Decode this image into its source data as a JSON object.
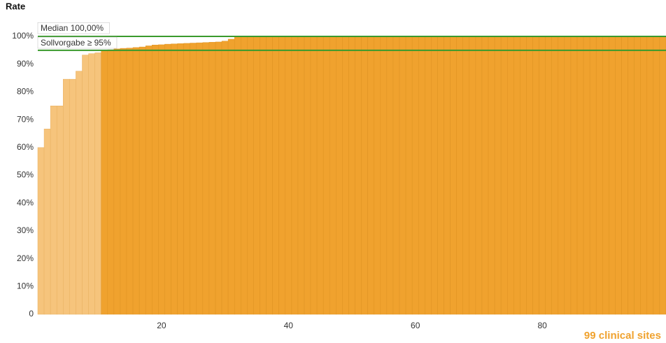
{
  "chart_data": {
    "type": "bar",
    "title": "Rate",
    "subtitle": "99 clinical sites",
    "x": [
      1,
      2,
      3,
      4,
      5,
      6,
      7,
      8,
      9,
      10,
      11,
      12,
      13,
      14,
      15,
      16,
      17,
      18,
      19,
      20,
      21,
      22,
      23,
      24,
      25,
      26,
      27,
      28,
      29,
      30,
      31,
      32,
      33,
      34,
      35,
      36,
      37,
      38,
      39,
      40,
      41,
      42,
      43,
      44,
      45,
      46,
      47,
      48,
      49,
      50,
      51,
      52,
      53,
      54,
      55,
      56,
      57,
      58,
      59,
      60,
      61,
      62,
      63,
      64,
      65,
      66,
      67,
      68,
      69,
      70,
      71,
      72,
      73,
      74,
      75,
      76,
      77,
      78,
      79,
      80,
      81,
      82,
      83,
      84,
      85,
      86,
      87,
      88,
      89,
      90,
      91,
      92,
      93,
      94,
      95,
      96,
      97,
      98,
      99
    ],
    "values": [
      60,
      66.7,
      75,
      75,
      84.6,
      84.6,
      87.5,
      93.3,
      93.8,
      94.1,
      95,
      95.2,
      95.5,
      95.7,
      95.8,
      96,
      96.2,
      96.6,
      96.9,
      97,
      97.2,
      97.3,
      97.4,
      97.5,
      97.6,
      97.7,
      97.8,
      97.9,
      98,
      98.3,
      99,
      100,
      100,
      100,
      100,
      100,
      100,
      100,
      100,
      100,
      100,
      100,
      100,
      100,
      100,
      100,
      100,
      100,
      100,
      100,
      100,
      100,
      100,
      100,
      100,
      100,
      100,
      100,
      100,
      100,
      100,
      100,
      100,
      100,
      100,
      100,
      100,
      100,
      100,
      100,
      100,
      100,
      100,
      100,
      100,
      100,
      100,
      100,
      100,
      100,
      100,
      100,
      100,
      100,
      100,
      100,
      100,
      100,
      100,
      100,
      100,
      100,
      100,
      100,
      100,
      100,
      100,
      100,
      100
    ],
    "color": "#f0a22e",
    "color_below": "#f6c47c",
    "reference_lines": [
      {
        "label": "Median 100,00%",
        "value": 100,
        "color": "#3a9a2c"
      },
      {
        "label": "Sollvorgabe ≥ 95%",
        "value": 95,
        "color": "#3a9a2c"
      }
    ],
    "xlim": [
      0.5,
      99.5
    ],
    "xticks": [
      20,
      40,
      60,
      80
    ],
    "ylim": [
      0,
      100
    ],
    "yticks": [
      {
        "value": 0,
        "label": "0"
      },
      {
        "value": 10,
        "label": "10%"
      },
      {
        "value": 20,
        "label": "20%"
      },
      {
        "value": 30,
        "label": "30%"
      },
      {
        "value": 40,
        "label": "40%"
      },
      {
        "value": 50,
        "label": "50%"
      },
      {
        "value": 60,
        "label": "60%"
      },
      {
        "value": 70,
        "label": "70%"
      },
      {
        "value": 80,
        "label": "80%"
      },
      {
        "value": 90,
        "label": "90%"
      },
      {
        "value": 100,
        "label": "100%"
      }
    ]
  }
}
